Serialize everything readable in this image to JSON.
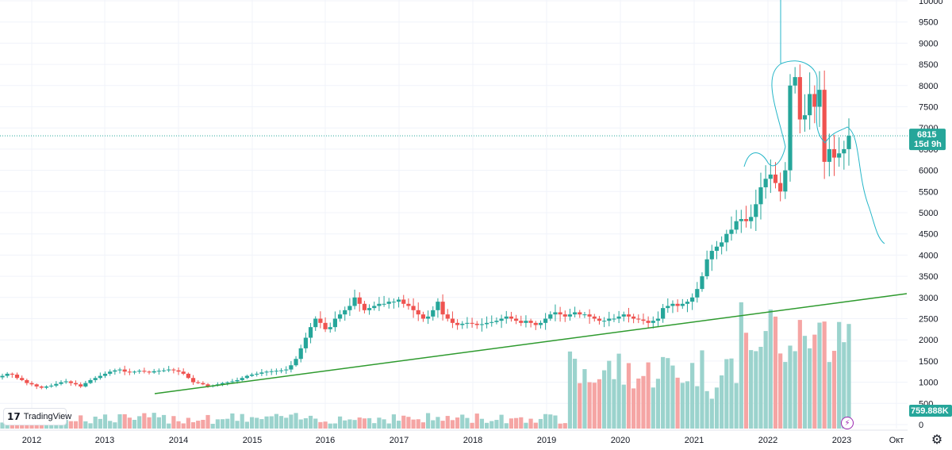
{
  "app": {
    "brand": "TradingView",
    "brand_icon": "tradingview-logo-icon",
    "settings_icon": "gear-icon",
    "flash_icon": "lightning-icon"
  },
  "colors": {
    "up": "#26a69a",
    "down": "#ef5350",
    "vol_up": "#9bd3cd",
    "vol_down": "#f5a5a4",
    "trend": "#2e9a2e",
    "draw": "#26b6c8",
    "price_line": "#26a69a",
    "grid": "#f0f3fa"
  },
  "price_label": {
    "value": "6815",
    "countdown": "15d 9h"
  },
  "volume_label": "759.888K",
  "chart_data": {
    "type": "candlestick",
    "y_axis": {
      "ticks": [
        0,
        500,
        1000,
        1500,
        2000,
        2500,
        3000,
        3500,
        4000,
        4500,
        5000,
        5500,
        6000,
        6500,
        7000,
        7500,
        8000,
        8500,
        9000,
        9500,
        10000
      ],
      "range": [
        -1050,
        10000
      ]
    },
    "x_axis": {
      "ticks": [
        "2012",
        "2013",
        "2014",
        "2015",
        "2016",
        "2017",
        "2018",
        "2019",
        "2020",
        "2021",
        "2022",
        "2023",
        "Окт"
      ]
    },
    "grid": true,
    "last_price": 6815,
    "candles_close": [
      1150,
      1200,
      1180,
      1100,
      1050,
      980,
      950,
      900,
      870,
      900,
      920,
      960,
      1000,
      1020,
      980,
      950,
      900,
      980,
      1050,
      1100,
      1150,
      1200,
      1250,
      1280,
      1300,
      1250,
      1230,
      1250,
      1270,
      1250,
      1230,
      1260,
      1270,
      1280,
      1300,
      1280,
      1250,
      1200,
      1100,
      1000,
      980,
      950,
      900,
      920,
      950,
      980,
      1000,
      1020,
      1050,
      1100,
      1150,
      1180,
      1200,
      1230,
      1250,
      1260,
      1270,
      1280,
      1300,
      1400,
      1550,
      1800,
      2050,
      2300,
      2500,
      2400,
      2250,
      2300,
      2500,
      2600,
      2700,
      2800,
      3000,
      2850,
      2700,
      2750,
      2800,
      2850,
      2850,
      2900,
      2900,
      2950,
      2850,
      2800,
      2700,
      2600,
      2500,
      2550,
      2700,
      2900,
      2600,
      2500,
      2400,
      2350,
      2380,
      2400,
      2380,
      2350,
      2370,
      2400,
      2420,
      2450,
      2500,
      2550,
      2500,
      2450,
      2400,
      2450,
      2400,
      2350,
      2400,
      2500,
      2600,
      2650,
      2600,
      2550,
      2600,
      2650,
      2600,
      2600,
      2550,
      2500,
      2450,
      2450,
      2500,
      2500,
      2550,
      2600,
      2550,
      2500,
      2480,
      2450,
      2400,
      2450,
      2500,
      2750,
      2800,
      2850,
      2800,
      2850,
      2900,
      3000,
      3200,
      3500,
      3900,
      4100,
      4200,
      4300,
      4500,
      4600,
      4800,
      4850,
      4800,
      4900,
      5200,
      5600,
      5800,
      5900,
      5700,
      5500,
      6000,
      8000,
      8200,
      7200,
      7300,
      7800,
      7500,
      7900,
      6200,
      6500,
      6300,
      6400,
      6500,
      6815
    ],
    "volume_description": "monthly volume bars in the lower pane",
    "annotations": [
      "green ascending trendline",
      "cyan hand-drawn curve"
    ]
  }
}
